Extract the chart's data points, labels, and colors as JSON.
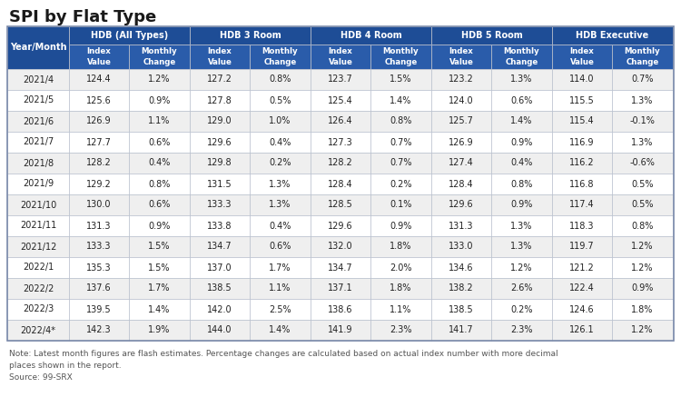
{
  "title": "SPI by Flat Type",
  "groups": [
    "HDB (All Types)",
    "HDB 3 Room",
    "HDB 4 Room",
    "HDB 5 Room",
    "HDB Executive"
  ],
  "rows": [
    [
      "2021/4",
      "124.4",
      "1.2%",
      "127.2",
      "0.8%",
      "123.7",
      "1.5%",
      "123.2",
      "1.3%",
      "114.0",
      "0.7%"
    ],
    [
      "2021/5",
      "125.6",
      "0.9%",
      "127.8",
      "0.5%",
      "125.4",
      "1.4%",
      "124.0",
      "0.6%",
      "115.5",
      "1.3%"
    ],
    [
      "2021/6",
      "126.9",
      "1.1%",
      "129.0",
      "1.0%",
      "126.4",
      "0.8%",
      "125.7",
      "1.4%",
      "115.4",
      "-0.1%"
    ],
    [
      "2021/7",
      "127.7",
      "0.6%",
      "129.6",
      "0.4%",
      "127.3",
      "0.7%",
      "126.9",
      "0.9%",
      "116.9",
      "1.3%"
    ],
    [
      "2021/8",
      "128.2",
      "0.4%",
      "129.8",
      "0.2%",
      "128.2",
      "0.7%",
      "127.4",
      "0.4%",
      "116.2",
      "-0.6%"
    ],
    [
      "2021/9",
      "129.2",
      "0.8%",
      "131.5",
      "1.3%",
      "128.4",
      "0.2%",
      "128.4",
      "0.8%",
      "116.8",
      "0.5%"
    ],
    [
      "2021/10",
      "130.0",
      "0.6%",
      "133.3",
      "1.3%",
      "128.5",
      "0.1%",
      "129.6",
      "0.9%",
      "117.4",
      "0.5%"
    ],
    [
      "2021/11",
      "131.3",
      "0.9%",
      "133.8",
      "0.4%",
      "129.6",
      "0.9%",
      "131.3",
      "1.3%",
      "118.3",
      "0.8%"
    ],
    [
      "2021/12",
      "133.3",
      "1.5%",
      "134.7",
      "0.6%",
      "132.0",
      "1.8%",
      "133.0",
      "1.3%",
      "119.7",
      "1.2%"
    ],
    [
      "2022/1",
      "135.3",
      "1.5%",
      "137.0",
      "1.7%",
      "134.7",
      "2.0%",
      "134.6",
      "1.2%",
      "121.2",
      "1.2%"
    ],
    [
      "2022/2",
      "137.6",
      "1.7%",
      "138.5",
      "1.1%",
      "137.1",
      "1.8%",
      "138.2",
      "2.6%",
      "122.4",
      "0.9%"
    ],
    [
      "2022/3",
      "139.5",
      "1.4%",
      "142.0",
      "2.5%",
      "138.6",
      "1.1%",
      "138.5",
      "0.2%",
      "124.6",
      "1.8%"
    ],
    [
      "2022/4*",
      "142.3",
      "1.9%",
      "144.0",
      "1.4%",
      "141.9",
      "2.3%",
      "141.7",
      "2.3%",
      "126.1",
      "1.2%"
    ]
  ],
  "note": "Note: Latest month figures are flash estimates. Percentage changes are calculated based on actual index number with more decimal\nplaces shown in the report.",
  "source": "Source: 99-SRX",
  "header_bg": "#1e4d96",
  "subheader_bg": "#2a5caa",
  "header_text": "#ffffff",
  "row_even_bg": "#efefef",
  "row_odd_bg": "#ffffff",
  "border_color": "#b0b8c8",
  "title_color": "#1a1a1a",
  "note_color": "#555555",
  "title_fontsize": 13,
  "header1_fontsize": 7.0,
  "header2_fontsize": 6.2,
  "data_fontsize": 7.0,
  "note_fontsize": 6.5
}
